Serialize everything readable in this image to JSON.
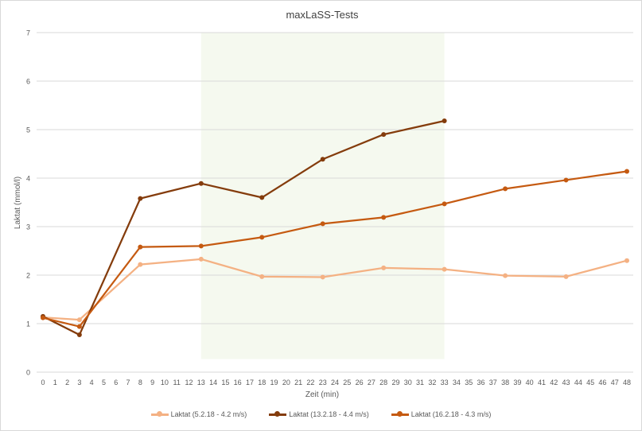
{
  "chart_data": {
    "type": "line",
    "title": "maxLaSS-Tests",
    "xlabel": "Zeit (min)",
    "ylabel": "Laktat (mmol/l)",
    "xlim": [
      0,
      48
    ],
    "ylim": [
      0,
      7
    ],
    "xticks": [
      0,
      1,
      2,
      3,
      4,
      5,
      6,
      7,
      8,
      9,
      10,
      11,
      12,
      13,
      14,
      15,
      16,
      17,
      18,
      19,
      20,
      21,
      22,
      23,
      24,
      25,
      26,
      27,
      28,
      29,
      30,
      31,
      32,
      33,
      34,
      35,
      36,
      37,
      38,
      39,
      40,
      41,
      42,
      43,
      44,
      45,
      46,
      47,
      48
    ],
    "yticks": [
      0,
      1,
      2,
      3,
      4,
      5,
      6,
      7
    ],
    "grid": "horizontal",
    "legend_position": "bottom",
    "shaded_region": {
      "x": [
        13,
        33
      ],
      "y": [
        0.27,
        7
      ],
      "color": "#f5f9ef"
    },
    "series": [
      {
        "name": "Laktat (5.2.18 - 4.2 m/s)",
        "color": "#F4B183",
        "x": [
          0,
          3,
          8,
          13,
          18,
          23,
          28,
          33,
          38,
          43,
          48
        ],
        "y": [
          1.13,
          1.08,
          2.22,
          2.33,
          1.97,
          1.96,
          2.15,
          2.12,
          1.99,
          1.97,
          2.3
        ]
      },
      {
        "name": "Laktat (13.2.18 - 4.4 m/s)",
        "color": "#843C0C",
        "x": [
          0,
          3,
          8,
          13,
          18,
          23,
          28,
          33
        ],
        "y": [
          1.15,
          0.77,
          3.58,
          3.89,
          3.6,
          4.39,
          4.9,
          5.18
        ]
      },
      {
        "name": "Laktat (16.2.18 - 4.3 m/s)",
        "color": "#C55A11",
        "x": [
          0,
          3,
          8,
          13,
          18,
          23,
          28,
          33,
          38,
          43,
          48
        ],
        "y": [
          1.12,
          0.94,
          2.58,
          2.6,
          2.78,
          3.06,
          3.19,
          3.47,
          3.78,
          3.96,
          4.14
        ]
      }
    ]
  }
}
